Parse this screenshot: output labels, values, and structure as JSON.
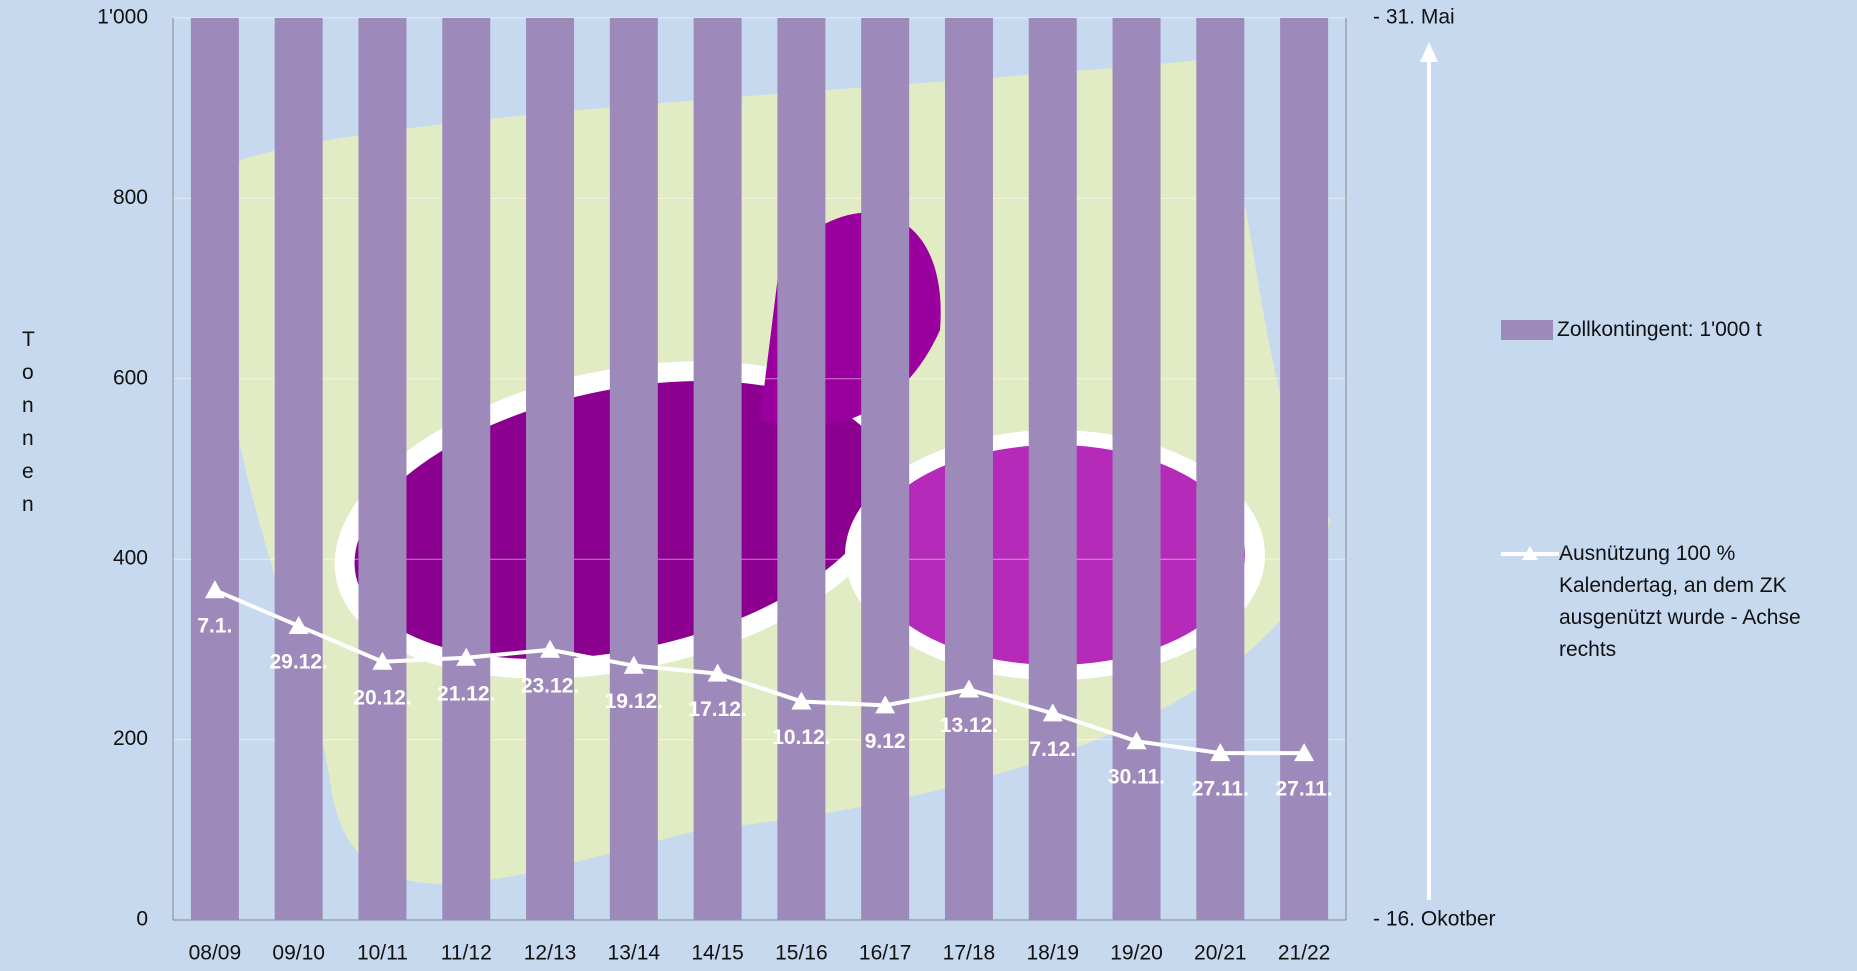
{
  "chart_data": {
    "type": "bar-line",
    "y_label": "Tonnen",
    "categories": [
      "08/09",
      "09/10",
      "10/11",
      "11/12",
      "12/13",
      "13/14",
      "14/15",
      "15/16",
      "16/17",
      "17/18",
      "18/19",
      "19/20",
      "20/21",
      "21/22"
    ],
    "series": [
      {
        "name": "Zollkontingent: 1'000 t",
        "type": "bar",
        "color": "#9e8aba",
        "values": [
          1000,
          1000,
          1000,
          1000,
          1000,
          1000,
          1000,
          1000,
          1000,
          1000,
          1000,
          1000,
          1000,
          1000
        ]
      },
      {
        "name": "Ausnützung 100 % Kalendertag, an dem ZK ausgenützt wurde - Achse rechts",
        "type": "line",
        "axis": "y2",
        "color": "#ffffff",
        "values": [
          83,
          74,
          65,
          66,
          68,
          64,
          62,
          55,
          54,
          58,
          52,
          45,
          42,
          42
        ],
        "value_labels": [
          "7.1.",
          "29.12.",
          "20.12.",
          "21.12.",
          "23.12.",
          "19.12.",
          "17.12.",
          "10.12.",
          "9.12",
          "13.12.",
          "7.12.",
          "30.11.",
          "27.11.",
          "27.11."
        ]
      }
    ],
    "ylim": [
      0,
      1000
    ],
    "yticks": [
      0,
      200,
      400,
      600,
      800,
      {
        "value": 1000,
        "label": "1'000"
      }
    ],
    "y2lim": [
      0,
      227
    ],
    "y2ticks": [
      {
        "value": 0,
        "label": "- 16. Okotber"
      },
      {
        "value": 227,
        "label": "- 31. Mai"
      }
    ],
    "grid": true,
    "legend": "right"
  }
}
